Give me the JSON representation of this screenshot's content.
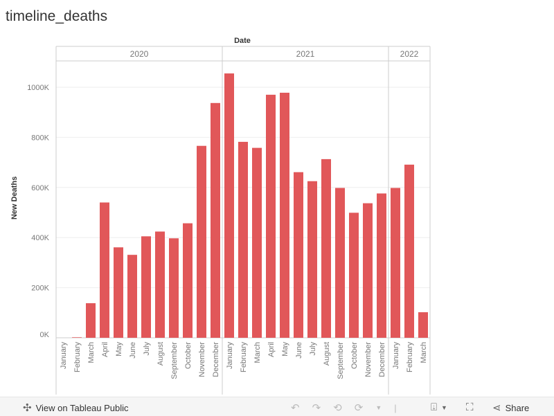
{
  "title": "timeline_deaths",
  "chart_data": {
    "type": "bar",
    "title": "timeline_deaths",
    "xlabel": "Date",
    "ylabel": "New Deaths",
    "ylim": [
      0,
      1100000
    ],
    "yticks": [
      0,
      200000,
      400000,
      600000,
      800000,
      1000000
    ],
    "ytick_labels": [
      "0K",
      "200K",
      "400K",
      "600K",
      "800K",
      "1000K"
    ],
    "grid": true,
    "years": [
      {
        "label": "2020",
        "months": 12
      },
      {
        "label": "2021",
        "months": 12
      },
      {
        "label": "2022",
        "months": 3
      }
    ],
    "categories": [
      "January",
      "February",
      "March",
      "April",
      "May",
      "June",
      "July",
      "August",
      "September",
      "October",
      "November",
      "December",
      "January",
      "February",
      "March",
      "April",
      "May",
      "June",
      "July",
      "August",
      "September",
      "October",
      "November",
      "December",
      "January",
      "February",
      "March"
    ],
    "values": [
      0,
      2000,
      138000,
      540000,
      361000,
      331000,
      405000,
      424000,
      397000,
      457000,
      766000,
      937000,
      1055000,
      782000,
      758000,
      970000,
      978000,
      661000,
      625000,
      713000,
      598000,
      499000,
      537000,
      576000,
      598000,
      691000,
      102000
    ],
    "bar_color": "#e15759"
  },
  "toolbar": {
    "view_label": "View on Tableau Public",
    "share_label": "Share"
  }
}
